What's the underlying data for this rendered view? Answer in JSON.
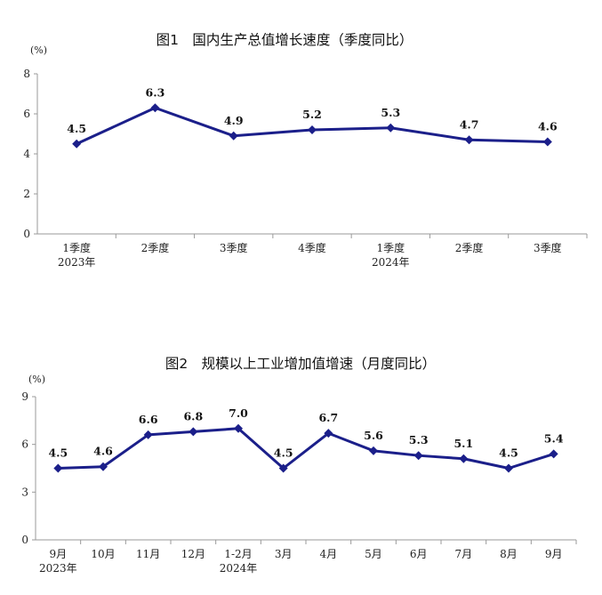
{
  "chart_data": [
    {
      "type": "line",
      "title": "图1　国内生产总值增长速度（季度同比）",
      "unit": "(%)",
      "categories": [
        "1季度",
        "2季度",
        "3季度",
        "4季度",
        "1季度",
        "2季度",
        "3季度"
      ],
      "year_labels": [
        "2023年",
        "",
        "",
        "",
        "2024年",
        "",
        ""
      ],
      "values": [
        4.5,
        6.3,
        4.9,
        5.2,
        5.3,
        4.7,
        4.6
      ],
      "value_labels": [
        "4.5",
        "6.3",
        "4.9",
        "5.2",
        "5.3",
        "4.7",
        "4.6"
      ],
      "yticks": [
        "0",
        "2",
        "4",
        "6",
        "8"
      ],
      "ylim": [
        0,
        8
      ],
      "grid": false,
      "line_color": "#1b1f8a"
    },
    {
      "type": "line",
      "title": "图2　规模以上工业增加值增速（月度同比）",
      "unit": "(%)",
      "categories": [
        "9月",
        "10月",
        "11月",
        "12月",
        "1-2月",
        "3月",
        "4月",
        "5月",
        "6月",
        "7月",
        "8月",
        "9月"
      ],
      "year_labels": [
        "2023年",
        "",
        "",
        "",
        "2024年",
        "",
        "",
        "",
        "",
        "",
        "",
        ""
      ],
      "values": [
        4.5,
        4.6,
        6.6,
        6.8,
        7.0,
        4.5,
        6.7,
        5.6,
        5.3,
        5.1,
        4.5,
        5.4
      ],
      "value_labels": [
        "4.5",
        "4.6",
        "6.6",
        "6.8",
        "7.0",
        "4.5",
        "6.7",
        "5.6",
        "5.3",
        "5.1",
        "4.5",
        "5.4"
      ],
      "yticks": [
        "0",
        "3",
        "6",
        "9"
      ],
      "ylim": [
        0,
        9
      ],
      "grid": false,
      "line_color": "#1b1f8a"
    }
  ]
}
